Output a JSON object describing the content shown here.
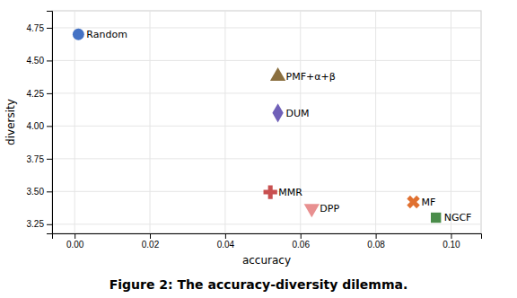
{
  "chart_data": {
    "type": "scatter",
    "title": "Figure 2: The accuracy-diversity dilemma.",
    "x_label": "accuracy",
    "y_label": "diversity",
    "series": [
      {
        "name": "Random",
        "color": "#4472c4",
        "marker": "circle",
        "x": [
          0.001
        ],
        "values": [
          4.7
        ]
      },
      {
        "name": "PMF+α+β",
        "color": "#8B7040",
        "marker": "triangle-up",
        "x": [
          0.054
        ],
        "values": [
          4.38
        ]
      },
      {
        "name": "DUM",
        "color": "#7060b8",
        "marker": "diamond",
        "x": [
          0.054
        ],
        "values": [
          4.1
        ]
      },
      {
        "name": "MMR",
        "color": "#c85050",
        "marker": "plus",
        "x": [
          0.052
        ],
        "values": [
          3.495
        ]
      },
      {
        "name": "DPP",
        "color": "#e89090",
        "marker": "triangle-down",
        "x": [
          0.063
        ],
        "values": [
          3.37
        ]
      },
      {
        "name": "MF",
        "color": "#e07030",
        "marker": "x",
        "x": [
          0.09
        ],
        "values": [
          3.42
        ]
      },
      {
        "name": "NGCF",
        "color": "#4a8c4a",
        "marker": "square",
        "x": [
          0.096
        ],
        "values": [
          3.3
        ]
      }
    ],
    "xlim": [
      -0.006,
      0.108
    ],
    "ylim": [
      3.18,
      4.88
    ],
    "xticks": [
      {
        "value": 0,
        "label": "0.00"
      },
      0.02,
      0.04,
      0.06,
      0.08,
      {
        "value": 0.1,
        "label": "0.10"
      }
    ],
    "yticks": [
      3.25,
      {
        "value": 3.5,
        "label": "3.50"
      },
      3.75,
      {
        "value": 4,
        "label": "4.00"
      },
      4.25,
      {
        "value": 4.5,
        "label": "4.50"
      },
      4.75
    ],
    "grid": true
  }
}
